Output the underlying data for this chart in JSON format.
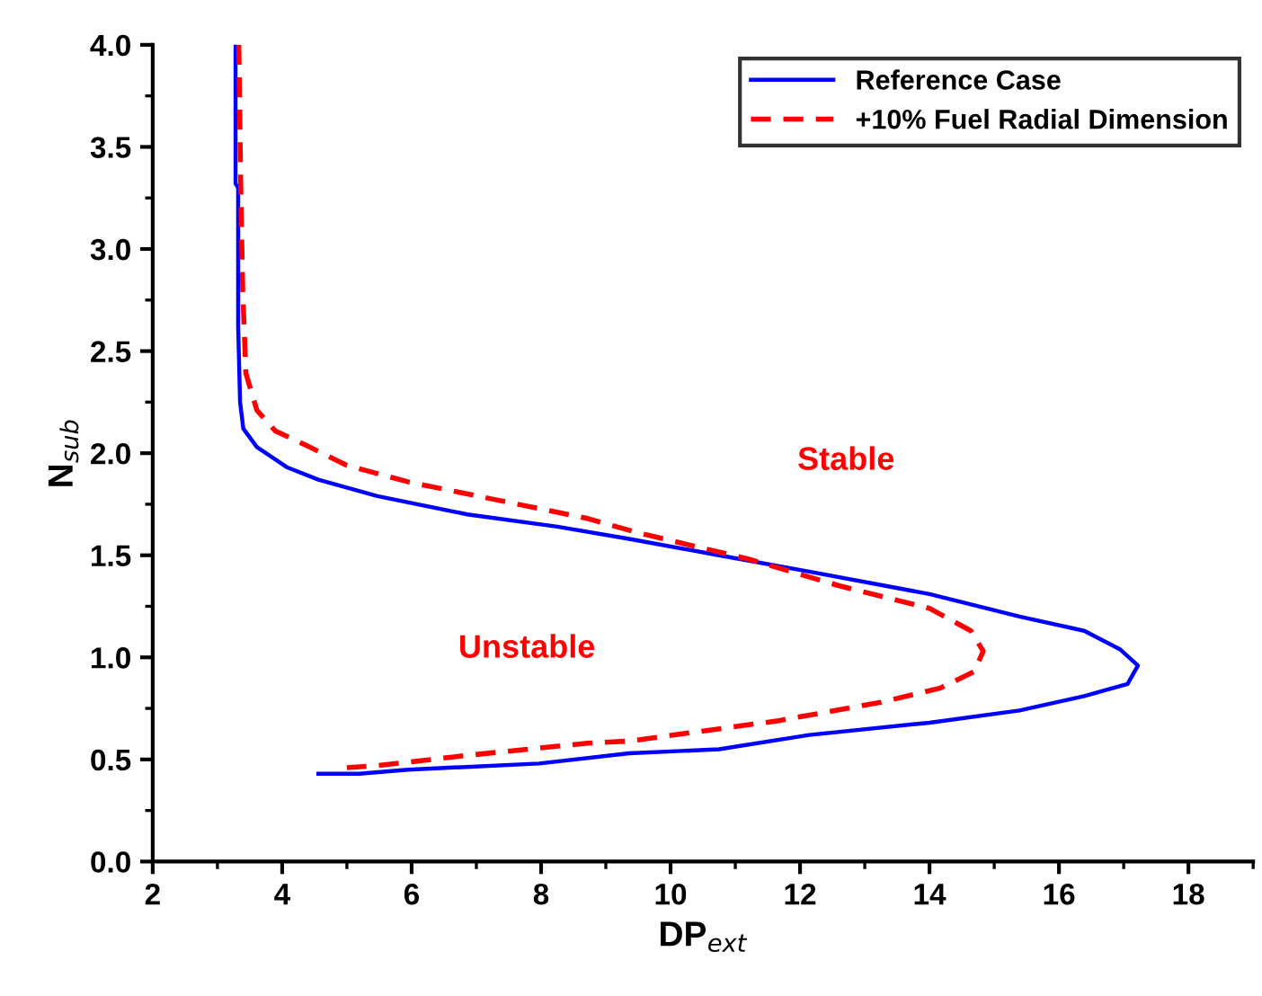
{
  "chart_data": {
    "type": "line",
    "xlabel": "DP$_{ext}$",
    "ylabel": "N$_{sub}$",
    "xlim": [
      2,
      19
    ],
    "ylim": [
      0,
      4
    ],
    "xticks": [
      2,
      4,
      6,
      8,
      10,
      12,
      14,
      16,
      18
    ],
    "yticks": [
      {
        "value": 0,
        "label": "0.0"
      },
      {
        "value": 0.5,
        "label": "0.5"
      },
      {
        "value": 1,
        "label": "1.0"
      },
      {
        "value": 1.5,
        "label": "1.5"
      },
      {
        "value": 2,
        "label": "2.0"
      },
      {
        "value": 2.5,
        "label": "2.5"
      },
      {
        "value": 3,
        "label": "3.0"
      },
      {
        "value": 3.5,
        "label": "3.5"
      },
      {
        "value": 4,
        "label": "4.0"
      }
    ],
    "grid": false,
    "legend": "top right",
    "marker": "none",
    "annotations": [
      "Stable",
      "Unstable"
    ],
    "series": [
      {
        "name": "Reference Case",
        "color": "#0000ff",
        "line_style": "solid",
        "x": [
          3.28,
          3.28,
          3.32,
          3.32,
          3.35,
          3.4,
          3.61,
          4.08,
          4.56,
          5.47,
          6.86,
          8.25,
          9.36,
          10.75,
          12.14,
          14.0,
          15.39,
          16.39,
          16.94,
          17.22,
          17.06,
          16.39,
          15.39,
          14.0,
          12.14,
          10.75,
          9.36,
          7.97,
          5.94,
          5.19,
          4.56
        ],
        "values": [
          4.0,
          3.32,
          3.3,
          2.62,
          2.25,
          2.12,
          2.03,
          1.93,
          1.87,
          1.79,
          1.7,
          1.64,
          1.58,
          1.5,
          1.42,
          1.31,
          1.2,
          1.13,
          1.04,
          0.96,
          0.87,
          0.81,
          0.74,
          0.68,
          0.62,
          0.55,
          0.53,
          0.48,
          0.45,
          0.43,
          0.43
        ]
      },
      {
        "name": "+10% Fuel Radial Dimension",
        "color": "#ff0000",
        "line_style": "dashed",
        "x": [
          3.33,
          3.36,
          3.39,
          3.44,
          3.61,
          3.89,
          4.36,
          5.0,
          5.94,
          7.33,
          8.72,
          9.5,
          11.22,
          12.61,
          14.0,
          14.64,
          14.83,
          14.69,
          14.17,
          13.25,
          11.67,
          10.28,
          9.36,
          8.72,
          6.86,
          5.47,
          5.0
        ],
        "values": [
          4.0,
          3.3,
          2.8,
          2.39,
          2.21,
          2.11,
          2.04,
          1.94,
          1.86,
          1.77,
          1.68,
          1.61,
          1.48,
          1.35,
          1.24,
          1.13,
          1.03,
          0.93,
          0.85,
          0.78,
          0.69,
          0.63,
          0.59,
          0.58,
          0.52,
          0.47,
          0.46
        ]
      }
    ]
  }
}
